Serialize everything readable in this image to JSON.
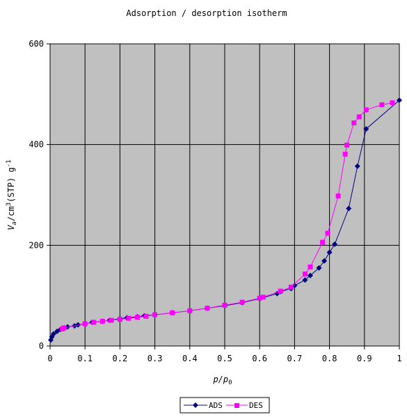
{
  "chart_data": {
    "type": "line",
    "title": "Adsorption / desorption isotherm",
    "xlabel": "p/p0",
    "ylabel": "Va/cm3(STP) g-1",
    "xlim": [
      0,
      1
    ],
    "ylim": [
      0,
      600
    ],
    "x_ticks": [
      "0",
      "0.1",
      "0.2",
      "0.3",
      "0.4",
      "0.5",
      "0.6",
      "0.7",
      "0.8",
      "0.9",
      "1"
    ],
    "y_ticks": [
      "0",
      "200",
      "400",
      "600"
    ],
    "grid": true,
    "background_color": "#c0c0c0",
    "legend_position": "bottom",
    "series": [
      {
        "name": "ADS",
        "color": "#000080",
        "marker": "diamond",
        "points": [
          [
            0.002,
            12
          ],
          [
            0.005,
            18
          ],
          [
            0.01,
            24
          ],
          [
            0.02,
            29
          ],
          [
            0.03,
            33
          ],
          [
            0.04,
            36
          ],
          [
            0.05,
            38
          ],
          [
            0.07,
            40
          ],
          [
            0.08,
            42
          ],
          [
            0.1,
            44
          ],
          [
            0.12,
            47
          ],
          [
            0.15,
            49
          ],
          [
            0.17,
            51
          ],
          [
            0.2,
            54
          ],
          [
            0.22,
            56
          ],
          [
            0.25,
            58
          ],
          [
            0.27,
            60
          ],
          [
            0.3,
            62
          ],
          [
            0.35,
            66
          ],
          [
            0.4,
            70
          ],
          [
            0.45,
            75
          ],
          [
            0.5,
            80
          ],
          [
            0.55,
            86
          ],
          [
            0.6,
            94
          ],
          [
            0.65,
            104
          ],
          [
            0.66,
            108
          ],
          [
            0.69,
            114
          ],
          [
            0.7,
            120
          ],
          [
            0.73,
            131
          ],
          [
            0.745,
            140
          ],
          [
            0.77,
            155
          ],
          [
            0.785,
            169
          ],
          [
            0.8,
            186
          ],
          [
            0.815,
            202
          ],
          [
            0.855,
            273
          ],
          [
            0.88,
            357
          ],
          [
            0.905,
            431
          ],
          [
            1.0,
            488
          ]
        ]
      },
      {
        "name": "DES",
        "color": "#ff00ff",
        "marker": "square",
        "points": [
          [
            0.035,
            34
          ],
          [
            0.04,
            36
          ],
          [
            0.1,
            44
          ],
          [
            0.125,
            47
          ],
          [
            0.15,
            49
          ],
          [
            0.175,
            51
          ],
          [
            0.2,
            53
          ],
          [
            0.225,
            55
          ],
          [
            0.25,
            57
          ],
          [
            0.275,
            59
          ],
          [
            0.3,
            62
          ],
          [
            0.35,
            66
          ],
          [
            0.4,
            70
          ],
          [
            0.45,
            75
          ],
          [
            0.5,
            81
          ],
          [
            0.55,
            87
          ],
          [
            0.6,
            95
          ],
          [
            0.61,
            97
          ],
          [
            0.66,
            109
          ],
          [
            0.69,
            117
          ],
          [
            0.73,
            143
          ],
          [
            0.745,
            157
          ],
          [
            0.78,
            206
          ],
          [
            0.795,
            224
          ],
          [
            0.825,
            298
          ],
          [
            0.845,
            381
          ],
          [
            0.85,
            399
          ],
          [
            0.87,
            443
          ],
          [
            0.885,
            455
          ],
          [
            0.905,
            469
          ],
          [
            0.95,
            479
          ],
          [
            0.98,
            483
          ]
        ]
      }
    ]
  }
}
